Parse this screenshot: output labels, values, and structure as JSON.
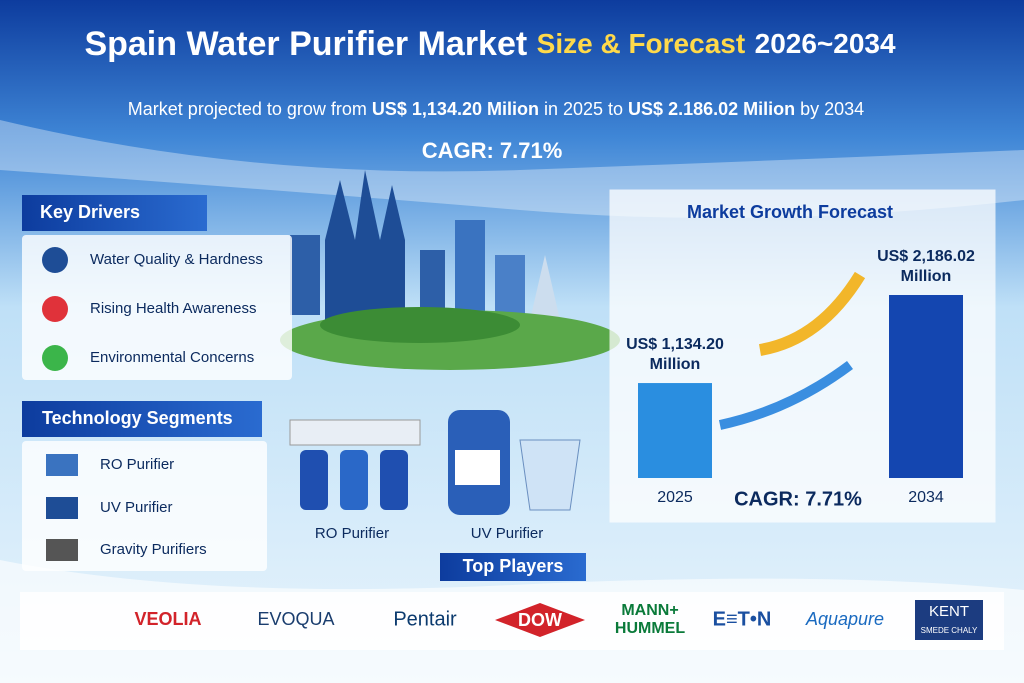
{
  "header": {
    "title": "Spain Water Purifier Market",
    "title_highlight": "Size & Forecast",
    "title_years": "2026~2034",
    "subtitle_parts": [
      "Market projected to grow from ",
      "US$ 1,134.20 Milion",
      " in 2025 to ",
      "US$ 2.186.02 Milion",
      " by 2034"
    ],
    "cagr": "CAGR: 7.71%"
  },
  "key_drivers": {
    "title": "Key Drivers",
    "items": [
      "Water Quality & Hardness",
      "Rising Health Awareness",
      "Environmental Concerns"
    ]
  },
  "technology_segments": {
    "title": "Technology Segments",
    "items": [
      "RO Purifier",
      "UV Purifier",
      "Gravity Purifiers"
    ]
  },
  "products": [
    "RO Purifier",
    "UV Purifier"
  ],
  "top_players": {
    "title": "Top Players",
    "logos": [
      "VEOLIA",
      "EVOQUA",
      "Pentair",
      "DOW",
      "MANN+",
      "HUMMEL",
      "E≡T•N",
      "Aquapure",
      "KENT",
      "SMEDE CHALY"
    ]
  },
  "chart_data": {
    "type": "bar",
    "title": "Market Growth Forecast",
    "categories": [
      "2025",
      "2034"
    ],
    "values": [
      1134.2,
      2186.02
    ],
    "value_labels": [
      "US$ 1,134.20 Million",
      "US$ 2,186.02 Million"
    ],
    "colors": [
      "#2a8ee0",
      "#1446b0"
    ],
    "annotation": "CAGR: 7.71%"
  }
}
